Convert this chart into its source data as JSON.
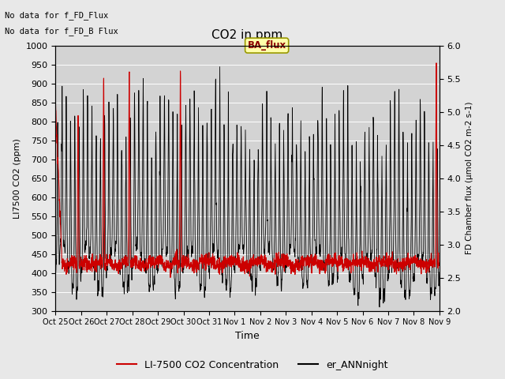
{
  "title": "CO2 in ppm",
  "xlabel": "Time",
  "ylabel_left": "LI7500 CO2 (ppm)",
  "ylabel_right": "FD Chamber flux (μmol CO2 m-2 s-1)",
  "ylim_left": [
    300,
    1000
  ],
  "ylim_right": [
    2.0,
    6.0
  ],
  "yticks_left": [
    300,
    350,
    400,
    450,
    500,
    550,
    600,
    650,
    700,
    750,
    800,
    850,
    900,
    950,
    1000
  ],
  "yticks_right": [
    2.0,
    2.5,
    3.0,
    3.5,
    4.0,
    4.5,
    5.0,
    5.5,
    6.0
  ],
  "xtick_labels": [
    "Oct 25",
    "Oct 26",
    "Oct 27",
    "Oct 28",
    "Oct 29",
    "Oct 30",
    "Oct 31",
    "Nov 1",
    "Nov 2",
    "Nov 3",
    "Nov 4",
    "Nov 5",
    "Nov 6",
    "Nov 7",
    "Nov 8",
    "Nov 9"
  ],
  "no_data_text1": "No data for f_FD_Flux",
  "no_data_text2": "No data for f_FD_B Flux",
  "ba_flux_label": "BA_flux",
  "legend_red_label": "LI-7500 CO2 Concentration",
  "legend_black_label": "er_ANNnight",
  "red_color": "#cc0000",
  "black_color": "#000000",
  "fig_bg_color": "#e8e8e8",
  "plot_bg_color": "#d3d3d3",
  "n_days": 15,
  "samples_per_day": 144
}
